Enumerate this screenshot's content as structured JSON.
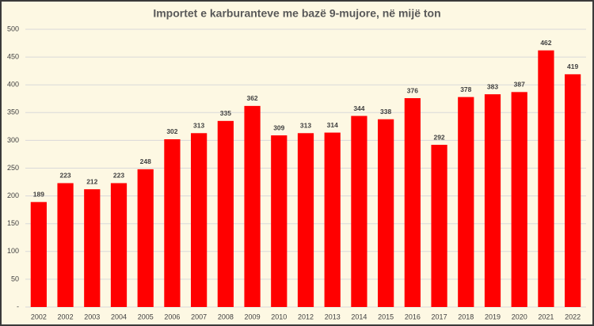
{
  "chart_data": {
    "type": "bar",
    "title": "Importet e karburanteve me bazë 9-mujore, në mijë ton",
    "categories": [
      "2002",
      "2002",
      "2003",
      "2004",
      "2005",
      "2006",
      "2007",
      "2008",
      "2009",
      "2010",
      "2012",
      "2013",
      "2014",
      "2015",
      "2016",
      "2017",
      "2018",
      "2019",
      "2020",
      "2021",
      "2022"
    ],
    "values": [
      189,
      223,
      212,
      223,
      248,
      302,
      313,
      335,
      362,
      309,
      313,
      314,
      344,
      338,
      376,
      292,
      378,
      383,
      387,
      462,
      419
    ],
    "color": "#ff0000",
    "ylim": [
      0,
      500
    ],
    "yticks": [
      {
        "value": 0,
        "label": "-"
      },
      50,
      100,
      150,
      200,
      250,
      300,
      350,
      400,
      450,
      500
    ],
    "grid": true
  }
}
